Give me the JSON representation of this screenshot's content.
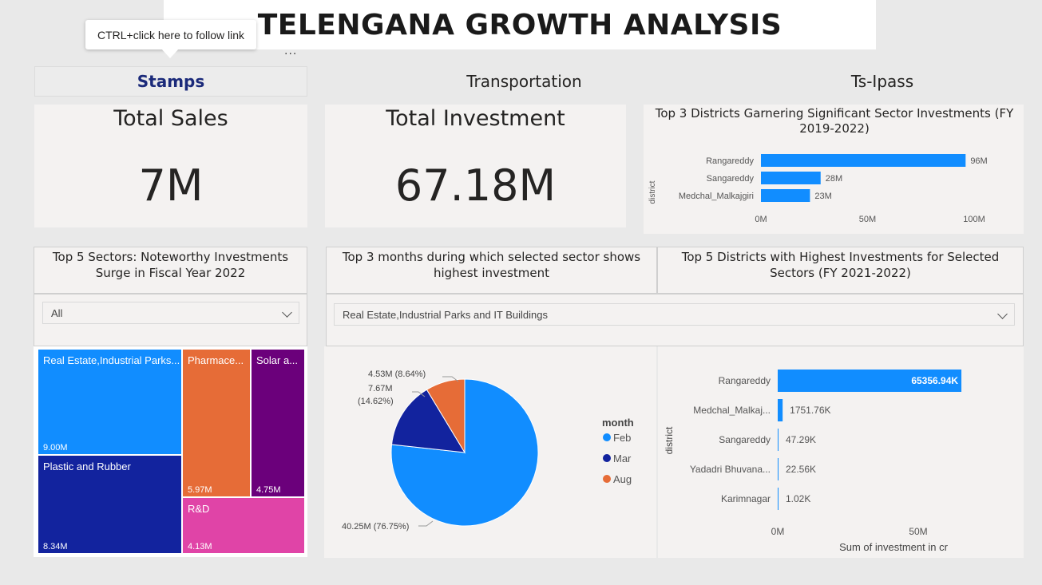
{
  "header": {
    "title": "TELENGANA GROWTH ANALYSIS"
  },
  "tooltip": {
    "text": "CTRL+click here to follow link"
  },
  "more_options": "...",
  "nav": {
    "stamps": "Stamps",
    "transportation": "Transportation",
    "tsipass": "Ts-Ipass"
  },
  "kpi": {
    "sales": {
      "title": "Total Sales",
      "value": "7M"
    },
    "investment": {
      "title": "Total Investment",
      "value": "67.18M"
    }
  },
  "top_districts": {
    "title": "Top 3 Districts Garnering Significant Sector Investments (FY 2019-2022)",
    "y_axis_label": "district",
    "ticks": [
      "0M",
      "50M",
      "100M"
    ],
    "bars": [
      {
        "district": "Rangareddy",
        "value": 96,
        "label": "96M"
      },
      {
        "district": "Sangareddy",
        "value": 28,
        "label": "28M"
      },
      {
        "district": "Medchal_Malkajgiri",
        "value": 23,
        "label": "23M"
      }
    ],
    "color": "#118dff"
  },
  "sectors_panel": {
    "title": "Top 5 Sectors: Noteworthy Investments Surge in Fiscal Year 2022",
    "filter_value": "All"
  },
  "months_panel": {
    "title": "Top 3 months during which selected sector shows highest investment",
    "filter_value": "Real Estate,Industrial Parks and IT Buildings"
  },
  "districts_panel": {
    "title": "Top 5 Districts with Highest Investments for Selected Sectors (FY 2021-2022)"
  },
  "treemap": {
    "tiles": [
      {
        "label": "Real Estate,Industrial Parks...",
        "value": "9.00M",
        "color": "#118dff"
      },
      {
        "label": "Plastic and Rubber",
        "value": "8.34M",
        "color": "#12239e"
      },
      {
        "label": "Pharmace...",
        "value": "5.97M",
        "color": "#e66c37"
      },
      {
        "label": "Solar a...",
        "value": "4.75M",
        "color": "#6b007b"
      },
      {
        "label": "R&D",
        "value": "4.13M",
        "color": "#e044a7"
      }
    ]
  },
  "pie": {
    "legend_title": "month",
    "slices": [
      {
        "month": "Feb",
        "value": 40.25,
        "label": "40.25M (76.75%)",
        "color": "#118dff"
      },
      {
        "month": "Mar",
        "value": 7.67,
        "label_line1": "7.67M",
        "label_line2": "(14.62%)",
        "color": "#12239e"
      },
      {
        "month": "Aug",
        "value": 4.53,
        "label": "4.53M (8.64%)",
        "color": "#e66c37"
      }
    ]
  },
  "district_bars": {
    "y_axis_label": "district",
    "x_axis_label": "Sum of investment in cr",
    "ticks": [
      "0M",
      "50M"
    ],
    "bars": [
      {
        "district": "Rangareddy",
        "value": 65356.94,
        "label": "65356.94K"
      },
      {
        "district": "Medchal_Malkaj...",
        "value": 1751.76,
        "label": "1751.76K"
      },
      {
        "district": "Sangareddy",
        "value": 47.29,
        "label": "47.29K"
      },
      {
        "district": "Yadadri Bhuvana...",
        "value": 22.56,
        "label": "22.56K"
      },
      {
        "district": "Karimnagar",
        "value": 1.02,
        "label": "1.02K"
      }
    ],
    "color": "#118dff"
  }
}
